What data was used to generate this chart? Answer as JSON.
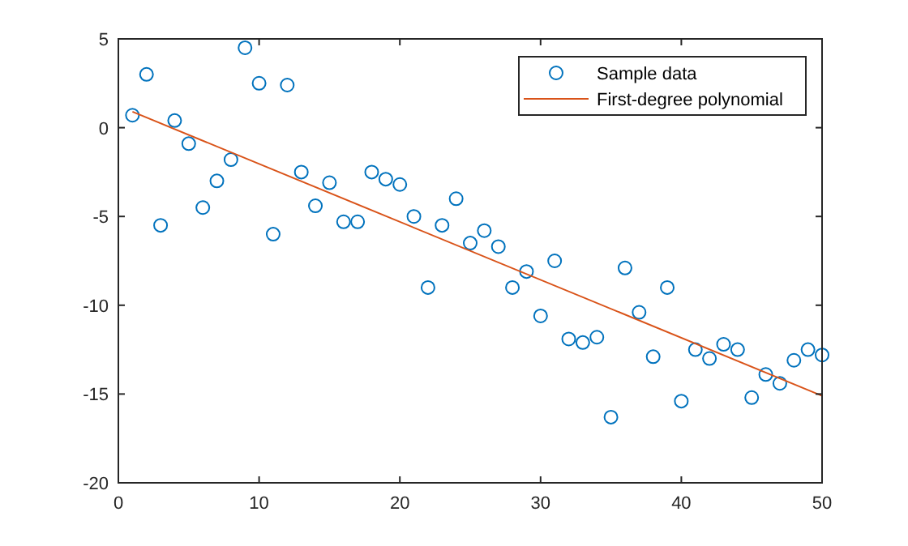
{
  "chart_data": {
    "type": "scatter",
    "xlim": [
      0,
      50
    ],
    "ylim": [
      -20,
      5
    ],
    "xticks": [
      0,
      10,
      20,
      30,
      40,
      50
    ],
    "yticks": [
      -20,
      -15,
      -10,
      -5,
      0,
      5
    ],
    "grid": false,
    "legend": "top right",
    "series": [
      {
        "name": "Sample data",
        "marker": "circle",
        "color": "#0072bd",
        "x": [
          1,
          2,
          3,
          4,
          5,
          6,
          7,
          8,
          9,
          10,
          11,
          12,
          13,
          14,
          15,
          16,
          17,
          18,
          19,
          20,
          21,
          22,
          23,
          24,
          25,
          26,
          27,
          28,
          29,
          30,
          31,
          32,
          33,
          34,
          35,
          36,
          37,
          38,
          39,
          40,
          41,
          42,
          43,
          44,
          45,
          46,
          47,
          48,
          49,
          50
        ],
        "values": [
          0.7,
          3.0,
          -5.5,
          0.4,
          -0.9,
          -4.5,
          -3.0,
          -1.8,
          4.5,
          2.5,
          -6.0,
          2.4,
          -2.5,
          -4.4,
          -3.1,
          -5.3,
          -5.3,
          -2.5,
          -2.9,
          -3.2,
          -5.0,
          -9.0,
          -5.5,
          -4.0,
          -6.5,
          -5.8,
          -6.7,
          -9.0,
          -8.1,
          -10.6,
          -7.5,
          -11.9,
          -12.1,
          -11.8,
          -16.3,
          -7.9,
          -10.4,
          -12.9,
          -9.0,
          -15.4,
          -12.5,
          -13.0,
          -12.2,
          -12.5,
          -15.2,
          -13.9,
          -14.4,
          -13.1,
          -12.5,
          -12.8
        ]
      },
      {
        "name": "First-degree polynomial",
        "type": "line",
        "line_style": "solid",
        "color": "#d95319",
        "x": [
          1,
          50
        ],
        "values": [
          0.9,
          -15.1
        ]
      }
    ]
  }
}
